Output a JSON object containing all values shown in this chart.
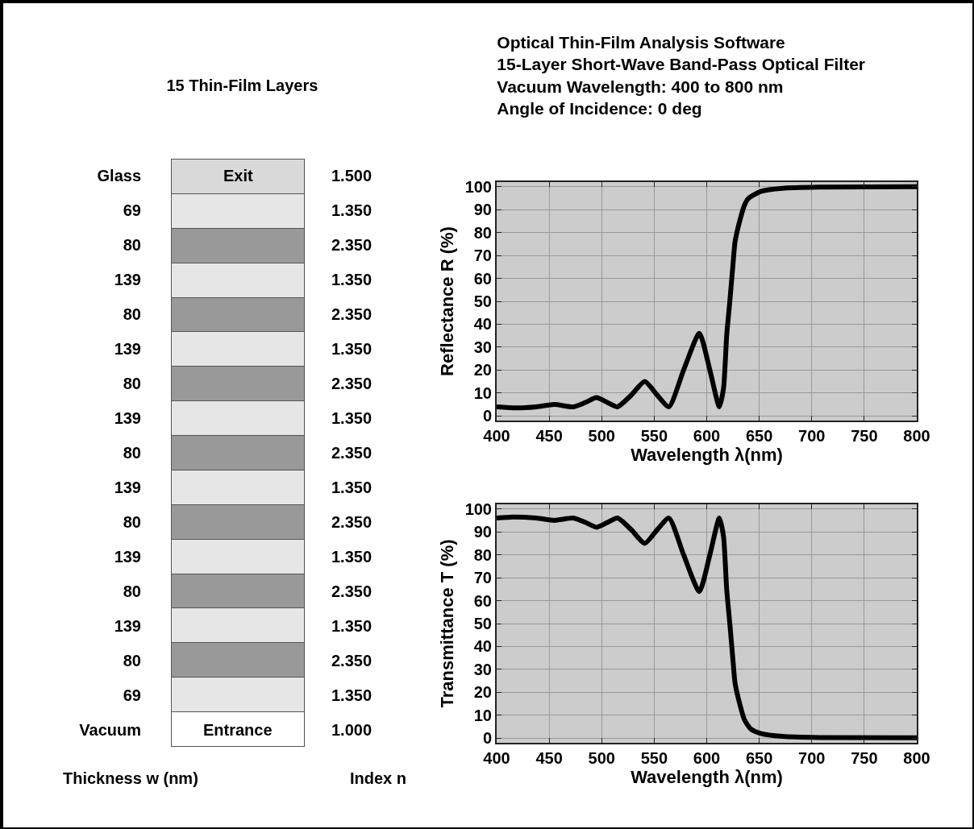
{
  "chart_data": [
    {
      "type": "other",
      "title": "15 Thin-Film Layers",
      "categories": [
        null
      ],
      "y2_categories": [
        "1.500",
        "1.350",
        "2.350",
        "1.350",
        "2.350",
        "1.350",
        "2.350",
        "1.350",
        "2.350",
        "1.350",
        "2.350",
        "1.350",
        "2.350",
        "1.350",
        "2.350",
        "1.350",
        "1.000"
      ],
      "colors": [
        "#d9d9d9",
        "#e6e6e6",
        "#999999",
        "#e6e6e6",
        "#999999",
        "#e6e6e6",
        "#999999",
        "#e6e6e6",
        "#999999",
        "#e6e6e6",
        "#999999",
        "#e6e6e6",
        "#999999",
        "#e6e6e6",
        "#999999",
        "#e6e6e6",
        "#ffffff"
      ],
      "y_categories": [
        "Glass",
        "69",
        "80",
        "139",
        "80",
        "139",
        "80",
        "139",
        "80",
        "139",
        "80",
        "139",
        "80",
        "139",
        "80",
        "69",
        "Vacuum"
      ],
      "cell_labels": [
        [
          "Exit"
        ],
        [
          null
        ],
        [
          null
        ],
        [
          null
        ],
        [
          null
        ],
        [
          null
        ],
        [
          null
        ],
        [
          null
        ],
        [
          null
        ],
        [
          null
        ],
        [
          null
        ],
        [
          null
        ],
        [
          null
        ],
        [
          null
        ],
        [
          null
        ],
        [
          null
        ],
        [
          "Entrance"
        ]
      ],
      "ylabel": "Thickness w (nm)",
      "y2label": "Index n"
    },
    {
      "type": "line",
      "title": "Optical Thin-Film Analysis Software",
      "subtitle": "15-Layer Short-Wave Band-Pass Optical Filter\nVacuum Wavelength: 400 to 800 nm\nAngle of Incidence: 0 deg",
      "xlabel": "Wavelength λ(nm)",
      "ylabel": "Reflectance R (%)",
      "x": [
        400,
        418,
        438,
        455,
        473,
        485,
        495,
        505,
        515,
        528,
        541,
        553,
        564,
        578,
        593,
        603,
        612,
        616,
        619,
        622,
        625,
        627,
        632,
        636,
        640,
        652,
        672,
        707,
        800
      ],
      "series": [
        {
          "color": "#000000",
          "values": [
            4,
            3.5,
            4,
            5,
            4,
            6,
            8,
            6,
            4,
            9,
            15,
            9,
            4,
            20,
            36,
            20,
            4,
            12,
            35,
            50,
            66,
            76,
            86,
            92,
            95,
            98,
            99.3,
            99.8,
            100
          ]
        }
      ],
      "xlim": [
        400,
        800
      ],
      "ylim": [
        -2,
        102
      ],
      "xticks": [
        400,
        450,
        500,
        550,
        600,
        650,
        700,
        750,
        800
      ],
      "yticks": [
        0,
        10,
        20,
        30,
        40,
        50,
        60,
        70,
        80,
        90,
        100
      ],
      "grid": true,
      "line_style": "solid"
    },
    {
      "type": "line",
      "xlabel": "Wavelength λ(nm)",
      "ylabel": "Transmittance T (%)",
      "x": [
        400,
        415,
        438,
        455,
        473,
        485,
        495,
        505,
        515,
        528,
        541,
        553,
        564,
        578,
        593,
        603,
        612,
        616,
        619,
        622,
        625,
        627,
        632,
        636,
        642,
        652,
        672,
        707,
        800
      ],
      "series": [
        {
          "color": "#000000",
          "values": [
            96,
            96.5,
            96,
            95,
            96,
            94,
            92,
            94,
            96,
            91,
            85,
            91,
            96,
            80,
            64,
            80,
            96,
            88,
            65,
            50,
            34,
            24,
            14,
            8,
            4,
            2,
            0.8,
            0.3,
            0.2
          ]
        }
      ],
      "xlim": [
        400,
        800
      ],
      "ylim": [
        -2,
        102
      ],
      "xticks": [
        400,
        450,
        500,
        550,
        600,
        650,
        700,
        750,
        800
      ],
      "yticks": [
        0,
        10,
        20,
        30,
        40,
        50,
        60,
        70,
        80,
        90,
        100
      ],
      "grid": true,
      "line_style": "solid"
    }
  ]
}
